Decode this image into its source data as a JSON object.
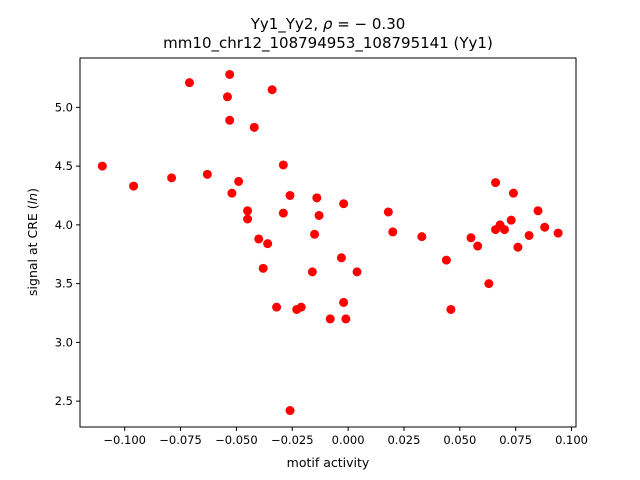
{
  "chart_data": {
    "type": "scatter",
    "title_line1": "Yy1_Yy2, ",
    "title_rho_symbol": "ρ",
    "title_rho_value": " = − 0.30",
    "title_line2": "mm10_chr12_108794953_108795141 (Yy1)",
    "xlabel": "motif activity",
    "ylabel_prefix": "signal at CRE (",
    "ylabel_italic": "ln",
    "ylabel_suffix": ")",
    "xlim": [
      -0.12,
      0.102
    ],
    "ylim": [
      2.28,
      5.42
    ],
    "xticks": [
      -0.1,
      -0.075,
      -0.05,
      -0.025,
      0.0,
      0.025,
      0.05,
      0.075,
      0.1
    ],
    "xtick_labels": [
      "−0.100",
      "−0.075",
      "−0.050",
      "−0.025",
      "0.000",
      "0.025",
      "0.050",
      "0.075",
      "0.100"
    ],
    "yticks": [
      2.5,
      3.0,
      3.5,
      4.0,
      4.5,
      5.0
    ],
    "ytick_labels": [
      "2.5",
      "3.0",
      "3.5",
      "4.0",
      "4.5",
      "5.0"
    ],
    "point_color": "#ff0000",
    "grid": false,
    "points": [
      {
        "x": -0.11,
        "y": 4.5
      },
      {
        "x": -0.096,
        "y": 4.33
      },
      {
        "x": -0.079,
        "y": 4.4
      },
      {
        "x": -0.071,
        "y": 5.21
      },
      {
        "x": -0.063,
        "y": 4.43
      },
      {
        "x": -0.054,
        "y": 5.09
      },
      {
        "x": -0.053,
        "y": 5.28
      },
      {
        "x": -0.053,
        "y": 4.89
      },
      {
        "x": -0.052,
        "y": 4.27
      },
      {
        "x": -0.049,
        "y": 4.37
      },
      {
        "x": -0.045,
        "y": 4.12
      },
      {
        "x": -0.045,
        "y": 4.05
      },
      {
        "x": -0.042,
        "y": 4.83
      },
      {
        "x": -0.04,
        "y": 3.88
      },
      {
        "x": -0.038,
        "y": 3.63
      },
      {
        "x": -0.036,
        "y": 3.84
      },
      {
        "x": -0.034,
        "y": 5.15
      },
      {
        "x": -0.032,
        "y": 3.3
      },
      {
        "x": -0.029,
        "y": 4.51
      },
      {
        "x": -0.029,
        "y": 4.1
      },
      {
        "x": -0.026,
        "y": 4.25
      },
      {
        "x": -0.026,
        "y": 2.42
      },
      {
        "x": -0.023,
        "y": 3.28
      },
      {
        "x": -0.021,
        "y": 3.3
      },
      {
        "x": -0.016,
        "y": 3.6
      },
      {
        "x": -0.015,
        "y": 3.92
      },
      {
        "x": -0.014,
        "y": 4.23
      },
      {
        "x": -0.013,
        "y": 4.08
      },
      {
        "x": -0.008,
        "y": 3.2
      },
      {
        "x": -0.003,
        "y": 3.72
      },
      {
        "x": -0.002,
        "y": 4.18
      },
      {
        "x": -0.002,
        "y": 3.34
      },
      {
        "x": -0.001,
        "y": 3.2
      },
      {
        "x": 0.004,
        "y": 3.6
      },
      {
        "x": 0.018,
        "y": 4.11
      },
      {
        "x": 0.02,
        "y": 3.94
      },
      {
        "x": 0.033,
        "y": 3.9
      },
      {
        "x": 0.044,
        "y": 3.7
      },
      {
        "x": 0.046,
        "y": 3.28
      },
      {
        "x": 0.055,
        "y": 3.89
      },
      {
        "x": 0.058,
        "y": 3.82
      },
      {
        "x": 0.063,
        "y": 3.5
      },
      {
        "x": 0.066,
        "y": 3.96
      },
      {
        "x": 0.066,
        "y": 4.36
      },
      {
        "x": 0.068,
        "y": 4.0
      },
      {
        "x": 0.07,
        "y": 3.96
      },
      {
        "x": 0.073,
        "y": 4.04
      },
      {
        "x": 0.074,
        "y": 4.27
      },
      {
        "x": 0.076,
        "y": 3.81
      },
      {
        "x": 0.081,
        "y": 3.91
      },
      {
        "x": 0.085,
        "y": 4.12
      },
      {
        "x": 0.088,
        "y": 3.98
      },
      {
        "x": 0.094,
        "y": 3.93
      }
    ]
  }
}
